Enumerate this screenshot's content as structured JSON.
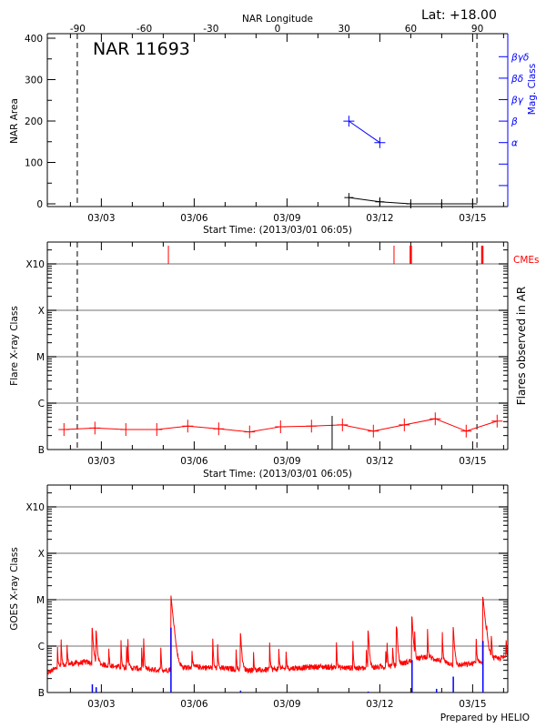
{
  "header": {
    "lat_label": "Lat: +18.00",
    "footer": "Prepared by HELIO"
  },
  "colors": {
    "axis": "#000000",
    "grid": "#a0a0a0",
    "flare": "#ff0000",
    "mag_class": "#0000ff",
    "goes_long": "#ff0000",
    "goes_short": "#0000ff",
    "cme": "#ff0000"
  },
  "chart_data": [
    {
      "type": "line",
      "title": "NAR 11693",
      "top_axis_label": "NAR Longitude",
      "top_ticks": [
        -90,
        -60,
        -30,
        0,
        30,
        60,
        90
      ],
      "xlabel": "Start Time: (2013/03/01 06:05)",
      "x_ticks": [
        "03/03",
        "03/06",
        "03/09",
        "03/12",
        "03/15"
      ],
      "ylabel": "NAR Area",
      "ylim": [
        0,
        400
      ],
      "y_ticks": [
        0,
        100,
        200,
        300,
        400
      ],
      "y2label": "Mag. Class",
      "y2_ticks": [
        "",
        "",
        "α",
        "β",
        "βγ",
        "βδ",
        "βγδ"
      ],
      "area_series": {
        "x": [
          "03/11 00:00",
          "03/12 00:00",
          "03/13 00:00",
          "03/14 00:00",
          "03/15 00:00"
        ],
        "y": [
          15,
          5,
          0,
          0,
          0
        ]
      },
      "mag_class_series": {
        "x": [
          "03/11 00:00",
          "03/12 00:00"
        ],
        "y": [
          "β",
          "α"
        ]
      },
      "limb_lines": [
        "03/02 05:20",
        "03/15 03:20"
      ]
    },
    {
      "type": "line",
      "xlabel": "Start Time: (2013/03/01 06:05)",
      "x_ticks": [
        "03/03",
        "03/06",
        "03/09",
        "03/12",
        "03/15"
      ],
      "ylabel": "Flare X-ray Class",
      "y_scale": "log",
      "y_ticks": [
        "B",
        "C",
        "M",
        "X",
        "X10"
      ],
      "y2label": "Flares observed in AR",
      "grid": true,
      "series": {
        "x": [
          "03/01 19:00",
          "03/02 19:00",
          "03/03 19:00",
          "03/04 19:00",
          "03/05 19:00",
          "03/06 19:00",
          "03/07 19:00",
          "03/08 19:00",
          "03/09 19:00",
          "03/10 19:00",
          "03/11 19:00",
          "03/12 19:00",
          "03/13 19:00",
          "03/14 19:00",
          "03/15 19:00"
        ],
        "y": [
          2.7e-07,
          2.9e-07,
          2.7e-07,
          2.7e-07,
          3.2e-07,
          2.8e-07,
          2.4e-07,
          3.1e-07,
          3.2e-07,
          3.4e-07,
          2.5e-07,
          3.4e-07,
          4.6e-07,
          2.5e-07,
          4.1e-07
        ]
      },
      "ar_flares": [
        {
          "time": "03/10 11:00",
          "flux": 5.3e-07
        }
      ],
      "cme_label": "CMEs",
      "cmes": [
        {
          "time": "03/05 04:00",
          "strong": false
        },
        {
          "time": "03/12 11:00",
          "strong": false
        },
        {
          "time": "03/13 00:00",
          "strong": true
        },
        {
          "time": "03/15 07:30",
          "strong": true
        }
      ],
      "limb_lines": [
        "03/02 05:20",
        "03/15 03:20"
      ]
    },
    {
      "type": "line",
      "x_ticks": [
        "03/03",
        "03/06",
        "03/09",
        "03/12",
        "03/15"
      ],
      "ylabel": "GOES X-ray Class",
      "y_scale": "log",
      "y_ticks": [
        "B",
        "C",
        "M",
        "X",
        "X10"
      ],
      "grid": true,
      "long_channel": {
        "background": [
          [
            "03/01 06:05",
            2.6e-07
          ],
          [
            "03/01 18:00",
            4e-07
          ],
          [
            "03/02 12:00",
            4.5e-07
          ],
          [
            "03/03 12:00",
            3.6e-07
          ],
          [
            "03/05 00:00",
            3e-07
          ],
          [
            "03/06 00:00",
            3.6e-07
          ],
          [
            "03/08 00:00",
            3e-07
          ],
          [
            "03/10 00:00",
            3.6e-07
          ],
          [
            "03/11 12:00",
            3.3e-07
          ],
          [
            "03/12 12:00",
            3.8e-07
          ],
          [
            "03/13 12:00",
            6e-07
          ],
          [
            "03/14 12:00",
            3.8e-07
          ],
          [
            "03/15 00:00",
            4.2e-07
          ],
          [
            "03/16 04:00",
            6e-07
          ]
        ],
        "flares": [
          {
            "time": "03/02 17:00",
            "flux": 2e-06
          },
          {
            "time": "03/02 20:00",
            "flux": 1.7e-06
          },
          {
            "time": "03/05 06:00",
            "flux": 1.2e-05
          },
          {
            "time": "03/07 12:00",
            "flux": 1.6e-06
          },
          {
            "time": "03/11 15:00",
            "flux": 1.8e-06
          },
          {
            "time": "03/12 13:00",
            "flux": 2.2e-06
          },
          {
            "time": "03/13 01:00",
            "flux": 3.8e-06
          },
          {
            "time": "03/14 09:00",
            "flux": 2.2e-06
          },
          {
            "time": "03/15 08:00",
            "flux": 1.1e-05
          }
        ]
      },
      "short_channel_spikes": [
        {
          "time": "03/02 17:00",
          "flux": 1.5e-07
        },
        {
          "time": "03/02 20:00",
          "flux": 1.3e-07
        },
        {
          "time": "03/05 06:00",
          "flux": 2.5e-06
        },
        {
          "time": "03/07 12:00",
          "flux": 1.1e-07
        },
        {
          "time": "03/11 15:00",
          "flux": 1.05e-07
        },
        {
          "time": "03/13 01:00",
          "flux": 5e-07
        },
        {
          "time": "03/13 20:00",
          "flux": 1.2e-07
        },
        {
          "time": "03/14 09:00",
          "flux": 2.2e-07
        },
        {
          "time": "03/15 08:00",
          "flux": 1.3e-06
        }
      ]
    }
  ]
}
